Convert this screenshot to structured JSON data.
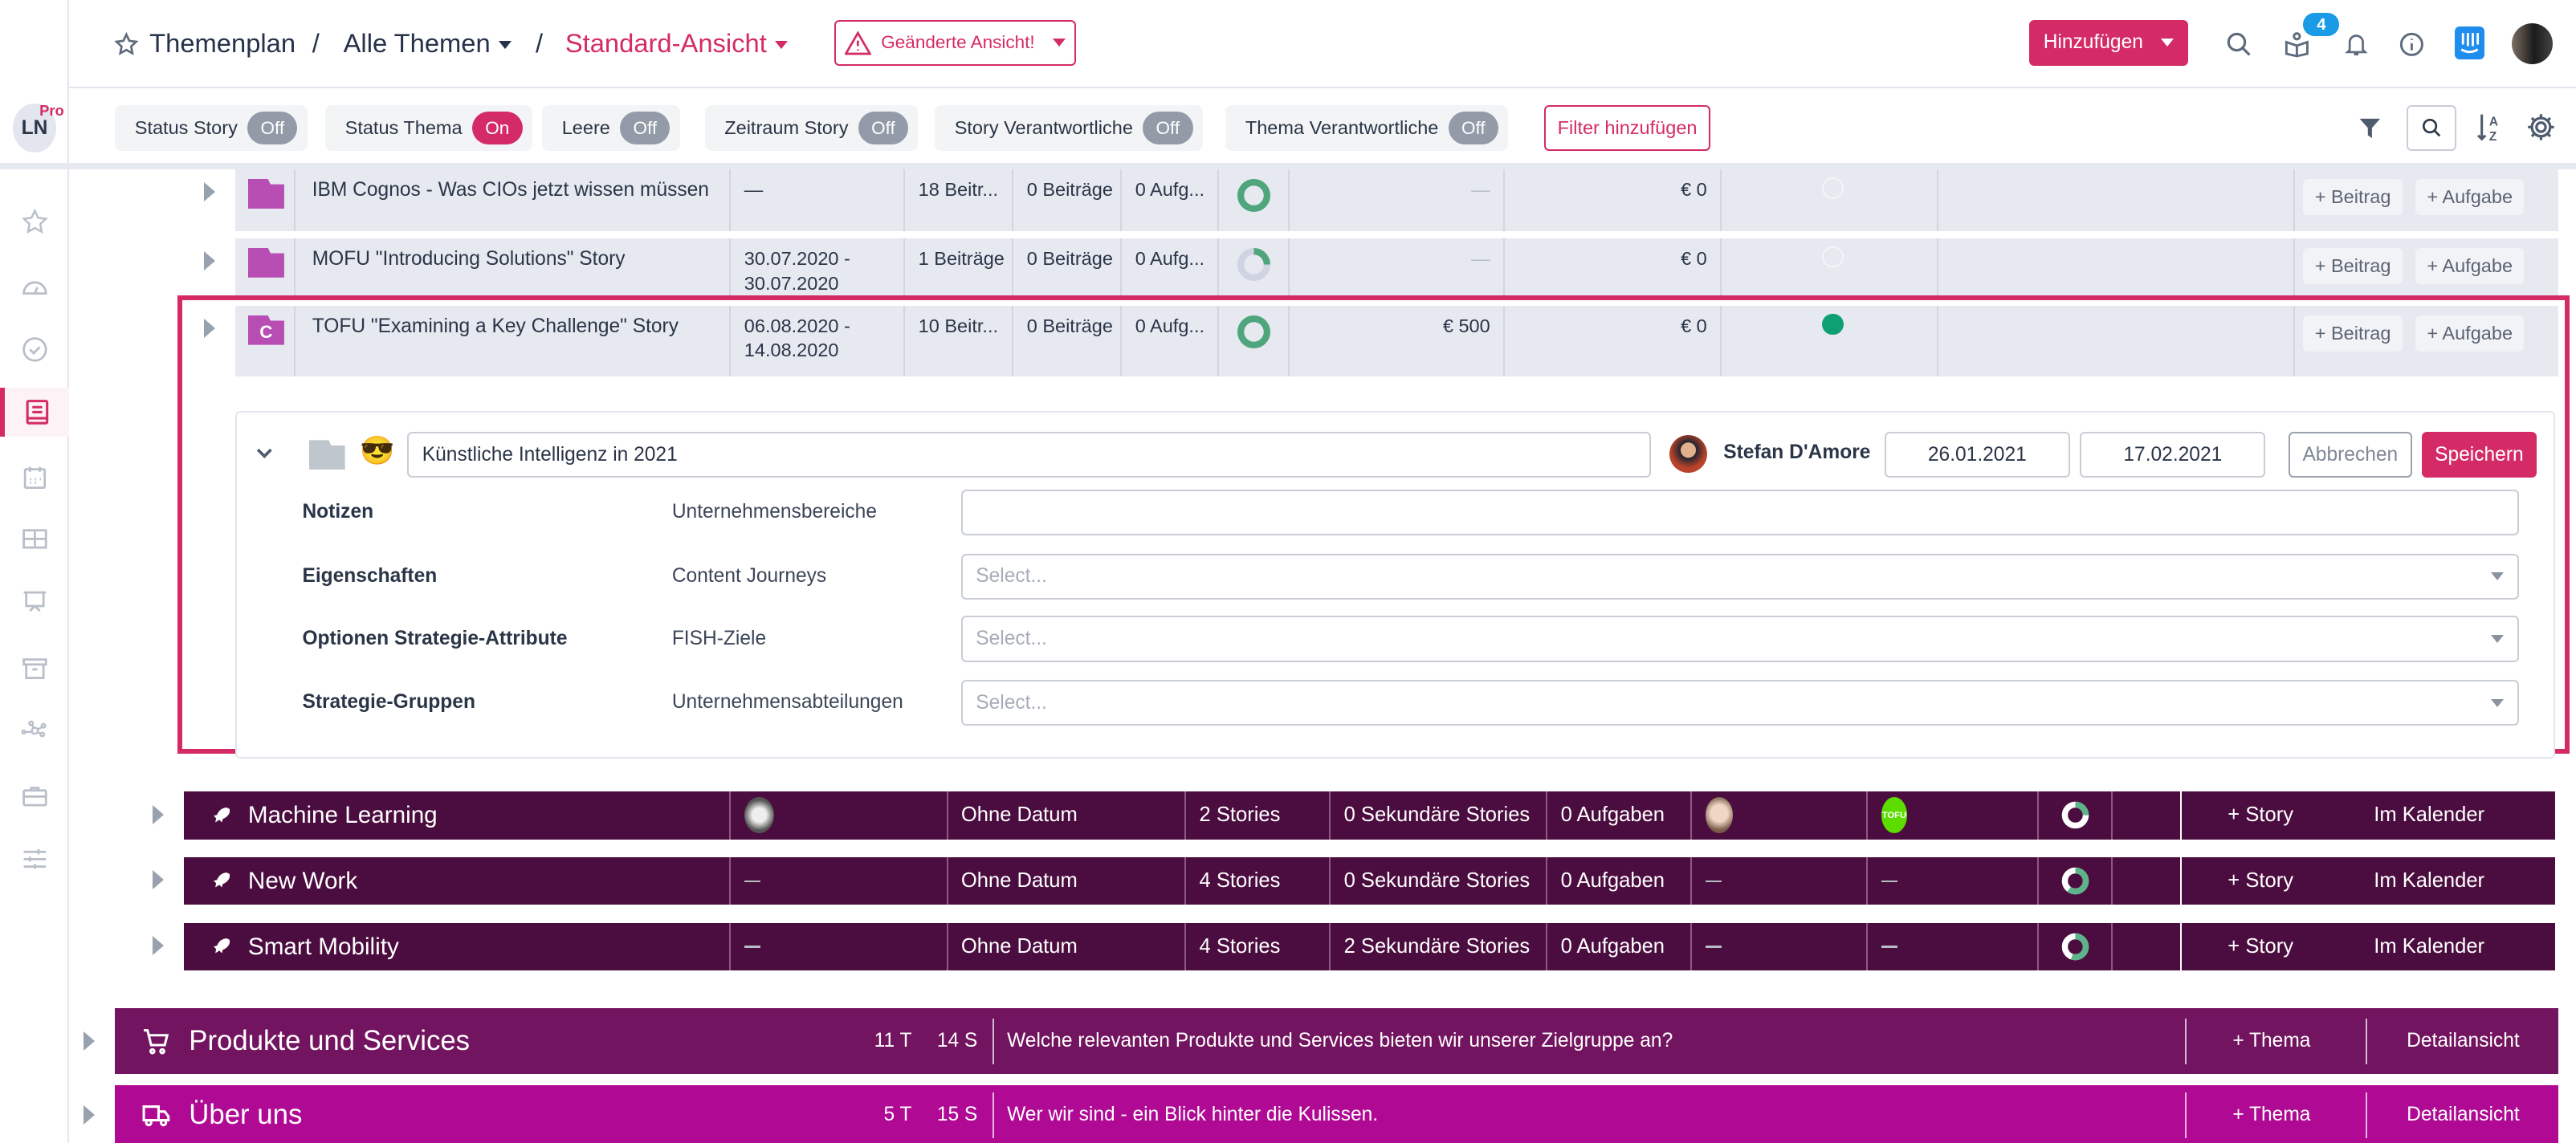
{
  "header": {
    "breadcrumb": [
      "Themenplan",
      "Alle Themen",
      "Standard-Ansicht"
    ],
    "separator": "/",
    "changed_view_label": "Geänderte Ansicht!",
    "add_button": "Hinzufügen",
    "notification_badge": "4",
    "icons": [
      "search-icon",
      "gift-book-icon",
      "bell-icon",
      "info-icon",
      "intercom-icon",
      "user-avatar"
    ]
  },
  "sidebar": {
    "workspace_initials": "LN",
    "plan_badge": "Pro",
    "items": [
      "favorites",
      "dashboard",
      "tasks",
      "themenplan",
      "calendar",
      "board",
      "presentation",
      "archive",
      "network",
      "briefcase",
      "settings-sliders"
    ],
    "active": "themenplan"
  },
  "filters": {
    "chips": [
      {
        "label": "Status Story",
        "state": "Off"
      },
      {
        "label": "Status Thema",
        "state": "On"
      },
      {
        "label": "Leere",
        "state": "Off"
      },
      {
        "label": "Zeitraum Story",
        "state": "Off"
      },
      {
        "label": "Story Verantwortliche",
        "state": "Off"
      },
      {
        "label": "Thema Verantwortliche",
        "state": "Off"
      }
    ],
    "add_filter": "Filter hinzufügen"
  },
  "stories": [
    {
      "title": "IBM Cognos - Was CIOs jetzt wissen müssen",
      "icon_letter": "",
      "date": "—",
      "beitraege": "18 Beitr...",
      "sek_beitraege": "0 Beiträge",
      "aufgaben": "0 Aufg...",
      "progress": 1.0,
      "budget": "—",
      "cost": "€ 0",
      "status": "empty"
    },
    {
      "title": "MOFU \"Introducing Solutions\" Story",
      "icon_letter": "",
      "date": "30.07.2020 - 30.07.2020",
      "beitraege": "1 Beiträge",
      "sek_beitraege": "0 Beiträge",
      "aufgaben": "0 Aufg...",
      "progress": 0.25,
      "budget": "—",
      "cost": "€ 0",
      "status": "empty"
    },
    {
      "title": "TOFU \"Examining a Key Challenge\" Story",
      "icon_letter": "C",
      "date": "06.08.2020 - 14.08.2020",
      "beitraege": "10 Beitr...",
      "sek_beitraege": "0 Beiträge",
      "aufgaben": "0 Aufg...",
      "progress": 1.0,
      "budget": "€ 500",
      "cost": "€ 0",
      "status": "green"
    }
  ],
  "story_actions": {
    "add_post": "+ Beitrag",
    "add_task": "+ Aufgabe"
  },
  "edit": {
    "title_value": "Künstliche Intelligenz in 2021",
    "emoji": "😎",
    "owner": "Stefan D'Amore",
    "start_date": "26.01.2021",
    "end_date": "17.02.2021",
    "cancel": "Abbrechen",
    "save": "Speichern",
    "fields": [
      {
        "label": "Notizen",
        "sub": "Unternehmensbereiche",
        "value": "",
        "placeholder": ""
      },
      {
        "label": "Eigenschaften",
        "sub": "Content Journeys",
        "value": "",
        "placeholder": "Select..."
      },
      {
        "label": "Optionen Strategie-Attribute",
        "sub": "FISH-Ziele",
        "value": "",
        "placeholder": "Select..."
      },
      {
        "label": "Strategie-Gruppen",
        "sub": "Unternehmensabteilungen",
        "value": "",
        "placeholder": "Select..."
      }
    ]
  },
  "themes": [
    {
      "title": "Machine Learning",
      "owner": "avatar",
      "date": "Ohne Datum",
      "stories": "2 Stories",
      "secondary": "0 Sekundäre Stories",
      "tasks": "0 Aufgaben",
      "member": "avatar",
      "tag": "TOFU",
      "progress": 0.25
    },
    {
      "title": "New Work",
      "owner": "—",
      "date": "Ohne Datum",
      "stories": "4 Stories",
      "secondary": "0 Sekundäre Stories",
      "tasks": "0 Aufgaben",
      "member": "—",
      "tag": "—",
      "progress": 0.6
    },
    {
      "title": "Smart Mobility",
      "owner": "—",
      "date": "Ohne Datum",
      "stories": "4 Stories",
      "secondary": "2 Sekundäre Stories",
      "tasks": "0 Aufgaben",
      "member": "—",
      "tag": "—",
      "progress": 0.55
    }
  ],
  "theme_actions": {
    "add_story": "+ Story",
    "calendar": "Im Kalender"
  },
  "categories": [
    {
      "title": "Produkte und Services",
      "topics": "11 T",
      "stories": "14 S",
      "description": "Welche relevanten Produkte und Services bieten wir unserer Zielgruppe an?",
      "color": "#72145f",
      "icon": "cart-icon"
    },
    {
      "title": "Über uns",
      "topics": "5 T",
      "stories": "15 S",
      "description": "Wer wir sind - ein Blick hinter die Kulissen.",
      "color": "#b00a95",
      "icon": "truck-icon"
    }
  ],
  "category_actions": {
    "add_theme": "+ Thema",
    "detail": "Detailansicht"
  },
  "colors": {
    "accent": "#d42b66",
    "theme_row": "#4b0d3f",
    "story_row": "#e6e9f0",
    "progress": "#4fa57c",
    "tag": "#5ddc00",
    "intercom": "#1f8ded",
    "badge": "#1a9be6"
  }
}
